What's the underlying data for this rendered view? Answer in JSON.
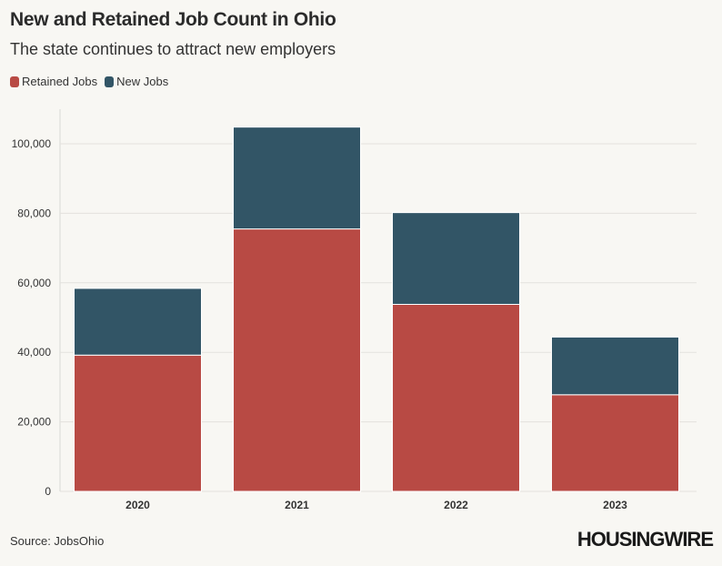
{
  "title": "New and Retained Job Count in Ohio",
  "subtitle": "The state continues to attract new employers",
  "legend": [
    {
      "label": "Retained Jobs",
      "color": "#b84a44"
    },
    {
      "label": "New Jobs",
      "color": "#325566"
    }
  ],
  "source": "Source: JobsOhio",
  "logo": "HOUSINGWIRE",
  "chart_data": {
    "type": "bar",
    "stacked": true,
    "title": "New and Retained Job Count in Ohio",
    "subtitle": "The state continues to attract new employers",
    "xlabel": "",
    "ylabel": "",
    "categories": [
      "2020",
      "2021",
      "2022",
      "2023"
    ],
    "series": [
      {
        "name": "Retained Jobs",
        "color": "#b84a44",
        "values": [
          39200,
          75500,
          53800,
          27800
        ]
      },
      {
        "name": "New Jobs",
        "color": "#325566",
        "values": [
          19200,
          29300,
          26400,
          16600
        ]
      }
    ],
    "ylim": [
      0,
      110000
    ],
    "yticks": [
      0,
      20000,
      40000,
      60000,
      80000,
      100000
    ],
    "ytick_labels": [
      "0",
      "20,000",
      "40,000",
      "60,000",
      "80,000",
      "100,000"
    ],
    "grid": true,
    "legend_position": "top-left"
  }
}
